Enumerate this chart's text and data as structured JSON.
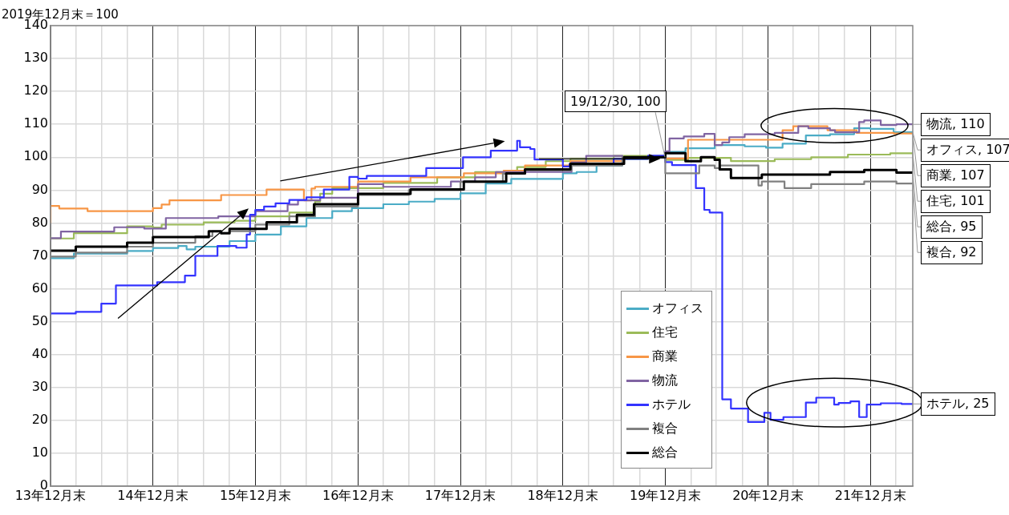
{
  "chart_data": {
    "type": "step",
    "ylabel": "2019年12月末＝100",
    "xlim": [
      "2013-12-31",
      "2022-05-31"
    ],
    "xticks": [
      {
        "value": "2013-12-31",
        "label": "13年12月末"
      },
      {
        "value": "2014-03-31",
        "label": null
      },
      {
        "value": "2014-06-30",
        "label": null
      },
      {
        "value": "2014-09-30",
        "label": null
      },
      {
        "value": "2014-12-31",
        "label": "14年12月末"
      },
      {
        "value": "2015-03-31",
        "label": null
      },
      {
        "value": "2015-06-30",
        "label": null
      },
      {
        "value": "2015-09-30",
        "label": null
      },
      {
        "value": "2015-12-31",
        "label": "15年12月末"
      },
      {
        "value": "2016-03-31",
        "label": null
      },
      {
        "value": "2016-06-30",
        "label": null
      },
      {
        "value": "2016-09-30",
        "label": null
      },
      {
        "value": "2016-12-31",
        "label": "16年12月末"
      },
      {
        "value": "2017-03-31",
        "label": null
      },
      {
        "value": "2017-06-30",
        "label": null
      },
      {
        "value": "2017-09-30",
        "label": null
      },
      {
        "value": "2017-12-31",
        "label": "17年12月末"
      },
      {
        "value": "2018-03-31",
        "label": null
      },
      {
        "value": "2018-06-30",
        "label": null
      },
      {
        "value": "2018-09-30",
        "label": null
      },
      {
        "value": "2018-12-31",
        "label": "18年12月末"
      },
      {
        "value": "2019-03-31",
        "label": null
      },
      {
        "value": "2019-06-30",
        "label": null
      },
      {
        "value": "2019-09-30",
        "label": null
      },
      {
        "value": "2019-12-31",
        "label": "19年12月末"
      },
      {
        "value": "2020-03-31",
        "label": null
      },
      {
        "value": "2020-06-30",
        "label": null
      },
      {
        "value": "2020-09-30",
        "label": null
      },
      {
        "value": "2020-12-31",
        "label": "20年12月末"
      },
      {
        "value": "2021-03-31",
        "label": null
      },
      {
        "value": "2021-06-30",
        "label": null
      },
      {
        "value": "2021-09-30",
        "label": null
      },
      {
        "value": "2021-12-31",
        "label": "21年12月末"
      },
      {
        "value": "2022-03-31",
        "label": null
      }
    ],
    "ylim": [
      0,
      140
    ],
    "yticks": [
      0,
      10,
      20,
      30,
      40,
      50,
      60,
      70,
      80,
      90,
      100,
      110,
      120,
      130,
      140
    ],
    "grid": true,
    "legend": "bottom right",
    "line_style": "solid",
    "marker": "none",
    "series": [
      {
        "name": "オフィス",
        "color": "#4bacc6",
        "x": [
          "2013-12-31",
          "2014-03-24",
          "2014-09-30",
          "2014-12-31",
          "2015-03-31",
          "2015-04-30",
          "2015-05-31",
          "2015-09-30",
          "2015-12-31",
          "2016-03-31",
          "2016-06-30",
          "2016-09-30",
          "2016-12-09",
          "2017-03-31",
          "2017-06-30",
          "2017-09-30",
          "2017-12-31",
          "2018-03-31",
          "2018-06-30",
          "2018-09-30",
          "2018-12-31",
          "2019-02-18",
          "2019-04-30",
          "2019-07-31",
          "2019-10-31",
          "2019-12-31",
          "2020-03-12",
          "2020-06-24",
          "2020-10-09",
          "2020-12-24",
          "2021-02-21",
          "2021-05-15",
          "2021-08-09",
          "2021-11-03",
          "2021-12-31",
          "2022-03-24",
          "2022-05-31"
        ],
        "values": [
          70.3,
          69.3,
          70.7,
          71.5,
          72.4,
          73,
          72,
          72.8,
          74.5,
          76.5,
          79,
          81.5,
          83.6,
          84.5,
          85.7,
          86.5,
          87.3,
          89,
          92,
          93.4,
          93.4,
          95.1,
          95.5,
          97.5,
          99.5,
          100,
          101.6,
          102.7,
          103.7,
          103.3,
          102.9,
          104.1,
          106.6,
          107,
          108.8,
          108.6,
          107.6
        ]
      },
      {
        "name": "住宅",
        "color": "#9bbb59",
        "x": [
          "2013-12-31",
          "2014-03-24",
          "2014-09-30",
          "2014-12-31",
          "2015-01-31",
          "2015-06-30",
          "2015-10-18",
          "2015-12-31",
          "2016-04-30",
          "2016-07-31",
          "2016-08-18",
          "2016-09-30",
          "2017-03-31",
          "2017-10-09",
          "2018-02-21",
          "2018-07-21",
          "2018-10-31",
          "2019-01-27",
          "2019-06-30",
          "2019-12-31",
          "2020-03-21",
          "2020-08-21",
          "2021-01-24",
          "2021-06-03",
          "2021-10-12",
          "2022-03-12",
          "2022-05-31"
        ],
        "values": [
          76,
          75.3,
          76.9,
          79,
          78.6,
          79.5,
          80.2,
          80.7,
          82,
          83.2,
          86.5,
          88.9,
          90.6,
          92.2,
          93.9,
          95.5,
          97,
          98.8,
          99.5,
          100.4,
          99.2,
          99.8,
          98.8,
          99.4,
          100,
          100.8,
          101.2
        ]
      },
      {
        "name": "商業",
        "color": "#f79646",
        "x": [
          "2013-12-31",
          "2014-01-31",
          "2014-05-12",
          "2014-12-31",
          "2015-01-31",
          "2015-02-28",
          "2015-08-31",
          "2016-02-09",
          "2016-06-21",
          "2016-07-18",
          "2016-07-31",
          "2016-12-31",
          "2017-07-06",
          "2018-01-12",
          "2018-06-03",
          "2018-08-18",
          "2019-01-27",
          "2019-08-06",
          "2019-12-31",
          "2020-03-21",
          "2021-02-21",
          "2021-03-31",
          "2021-07-31",
          "2021-11-12",
          "2022-03-24",
          "2022-05-31"
        ],
        "values": [
          80,
          85.2,
          84.4,
          83.6,
          84.5,
          85.6,
          86.9,
          88.5,
          90.2,
          86.9,
          90.5,
          91,
          92.6,
          93.9,
          95.1,
          95.9,
          97.5,
          98.8,
          100,
          99.6,
          105.3,
          108.2,
          109.4,
          108.2,
          107.4,
          107.2
        ]
      },
      {
        "name": "物流",
        "color": "#8064a2",
        "x": [
          "2013-12-31",
          "2014-02-06",
          "2014-08-15",
          "2014-11-30",
          "2015-02-15",
          "2015-08-21",
          "2015-12-31",
          "2016-04-24",
          "2016-05-31",
          "2016-08-18",
          "2016-12-31",
          "2017-03-31",
          "2017-11-27",
          "2018-02-21",
          "2018-05-06",
          "2018-08-09",
          "2019-01-31",
          "2019-03-24",
          "2019-07-31",
          "2019-12-31",
          "2020-01-15",
          "2020-03-06",
          "2020-05-18",
          "2020-06-24",
          "2020-07-21",
          "2020-08-15",
          "2020-10-09",
          "2021-01-24",
          "2021-04-18",
          "2021-05-24",
          "2021-08-09",
          "2021-08-27",
          "2021-11-21",
          "2021-12-09",
          "2022-02-06",
          "2022-04-03",
          "2022-05-31"
        ],
        "values": [
          74.5,
          75.4,
          77.4,
          78.7,
          78.3,
          81.5,
          82,
          83.6,
          85.6,
          86.9,
          87.7,
          91.8,
          91,
          92.6,
          93.9,
          95.5,
          95.5,
          98.4,
          100.4,
          100,
          101.8,
          105.7,
          106.3,
          107.1,
          103.7,
          104.5,
          106.1,
          107,
          107.4,
          109.4,
          108.8,
          108.2,
          107.6,
          110.7,
          111.2,
          109.8,
          110
        ]
      },
      {
        "name": "ホテル",
        "color": "#3333ff",
        "x": [
          "2013-12-31",
          "2014-03-31",
          "2014-06-30",
          "2014-08-21",
          "2015-01-15",
          "2015-04-24",
          "2015-05-31",
          "2015-08-18",
          "2015-10-24",
          "2015-11-30",
          "2015-12-12",
          "2015-12-31",
          "2016-01-31",
          "2016-03-12",
          "2016-04-30",
          "2016-06-30",
          "2016-08-31",
          "2016-11-30",
          "2016-12-31",
          "2017-01-31",
          "2017-08-31",
          "2018-01-09",
          "2018-04-18",
          "2018-07-21",
          "2018-07-31",
          "2018-09-06",
          "2018-09-21",
          "2018-12-31",
          "2019-01-24",
          "2019-06-30",
          "2019-10-31",
          "2019-12-31",
          "2020-01-24",
          "2020-04-18",
          "2020-05-18",
          "2020-06-06",
          "2020-07-21",
          "2020-08-21",
          "2020-10-21",
          "2020-12-18",
          "2021-01-09",
          "2021-02-24",
          "2021-05-15",
          "2021-06-21",
          "2021-08-24",
          "2021-09-09",
          "2021-10-21",
          "2021-11-21",
          "2021-12-18",
          "2022-02-06",
          "2022-04-21",
          "2022-05-31"
        ],
        "values": [
          52,
          52.5,
          53,
          55.5,
          61,
          62,
          64,
          70,
          73,
          72.5,
          76.5,
          82.5,
          84,
          85,
          86,
          87,
          87.8,
          90.2,
          94,
          93.5,
          94.3,
          96.7,
          100,
          102,
          105,
          103,
          102.5,
          99.3,
          97.2,
          98,
          99.5,
          100.5,
          98.5,
          97.6,
          90.6,
          84,
          83.2,
          26.4,
          23.6,
          19.5,
          22.3,
          20.2,
          21,
          25.4,
          26.9,
          24.8,
          25.3,
          25.8,
          21,
          24.8,
          25.2,
          25
        ]
      },
      {
        "name": "複合",
        "color": "#808080",
        "x": [
          "2013-12-31",
          "2014-03-31",
          "2014-09-30",
          "2014-12-31",
          "2015-05-31",
          "2015-07-31",
          "2015-08-31",
          "2015-09-30",
          "2015-12-31",
          "2016-04-30",
          "2016-07-31",
          "2016-12-31",
          "2017-06-30",
          "2017-12-31",
          "2018-05-31",
          "2018-08-18",
          "2019-01-31",
          "2019-07-31",
          "2019-12-31",
          "2020-04-30",
          "2020-06-24",
          "2020-07-12",
          "2020-11-27",
          "2020-12-09",
          "2021-02-28",
          "2021-06-03",
          "2021-12-09",
          "2022-04-03",
          "2022-05-31"
        ],
        "values": [
          70,
          69.8,
          71,
          72.8,
          74,
          76,
          77.5,
          77,
          77.5,
          79.5,
          82,
          85,
          88.5,
          90,
          92.5,
          95,
          96,
          97.5,
          100,
          95.1,
          97.5,
          96.7,
          97.5,
          91.4,
          92.6,
          90.6,
          91.8,
          92.6,
          92
        ]
      },
      {
        "name": "総合",
        "color": "#000000",
        "x": [
          "2013-12-31",
          "2014-03-31",
          "2014-09-30",
          "2014-12-31",
          "2015-07-18",
          "2015-08-31",
          "2015-09-30",
          "2016-02-09",
          "2016-05-27",
          "2016-07-27",
          "2016-12-31",
          "2017-07-06",
          "2018-01-12",
          "2018-06-12",
          "2018-08-18",
          "2019-01-27",
          "2019-08-06",
          "2019-12-31",
          "2020-03-12",
          "2020-05-06",
          "2020-06-24",
          "2020-07-12",
          "2020-08-21",
          "2020-12-09",
          "2021-08-09",
          "2021-12-09",
          "2022-04-03",
          "2022-05-31"
        ],
        "values": [
          71.3,
          71.6,
          72.8,
          74,
          75.7,
          77.5,
          76.9,
          78.2,
          80.2,
          82.5,
          85.7,
          88.9,
          90.2,
          92.6,
          95.1,
          96.3,
          98,
          100,
          101.2,
          98.8,
          100,
          99.2,
          96.3,
          93.7,
          94.7,
          95.5,
          96.1,
          95.3
        ]
      }
    ],
    "annotations": [
      {
        "text": "19/12/30, 100",
        "x": "2019-12-30",
        "y": 100
      },
      {
        "text": "物流, 110",
        "x": "2022-05-31",
        "y": 110
      },
      {
        "text": "商業, 107",
        "x": "2022-05-31",
        "y": 107.2
      },
      {
        "text": "オフィス, 107",
        "x": "2022-05-31",
        "y": 107.6
      },
      {
        "text": "住宅, 101",
        "x": "2022-05-31",
        "y": 101.2
      },
      {
        "text": "総合, 95",
        "x": "2022-05-31",
        "y": 95.3
      },
      {
        "text": "複合, 92",
        "x": "2022-05-31",
        "y": 92
      },
      {
        "text": "ホテル, 25",
        "x": "2022-05-31",
        "y": 25
      }
    ]
  }
}
